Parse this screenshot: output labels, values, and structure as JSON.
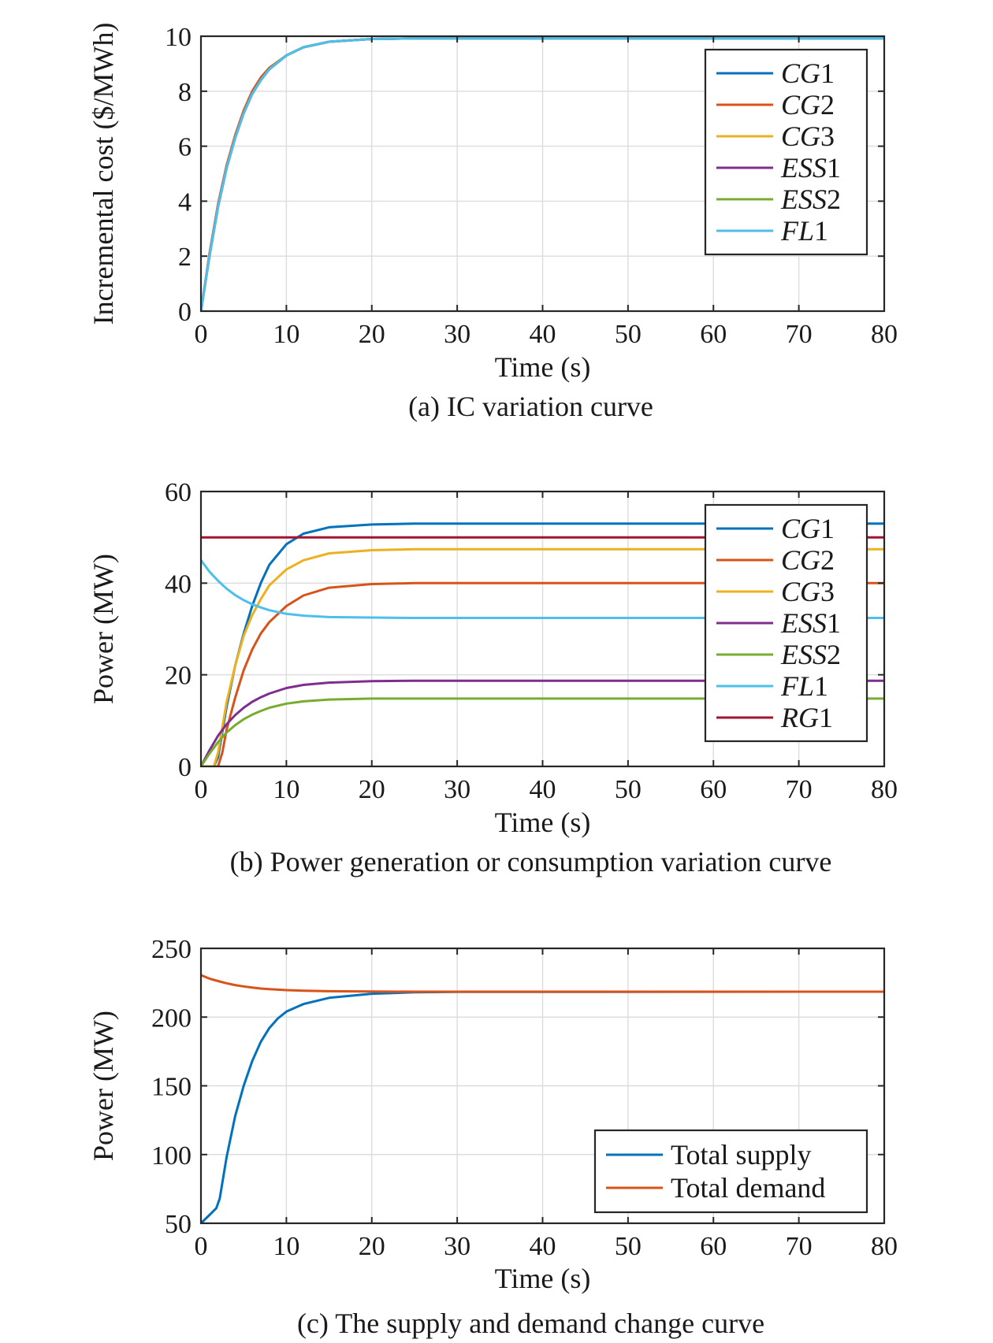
{
  "chart_data": [
    {
      "type": "line",
      "caption": "(a) IC variation curve",
      "xlabel": "Time (s)",
      "ylabel": "Incremental cost ($/MWh)",
      "xlim": [
        0,
        80
      ],
      "ylim": [
        0,
        10
      ],
      "xticks": [
        0,
        10,
        20,
        30,
        40,
        50,
        60,
        70,
        80
      ],
      "yticks": [
        0,
        2,
        4,
        6,
        8,
        10
      ],
      "grid": true,
      "legend_position": "top-right",
      "series": [
        {
          "name": "CG1",
          "color": "#0072BD",
          "x": [
            0,
            1,
            2,
            3,
            4,
            5,
            6,
            7,
            8,
            10,
            12,
            15,
            20,
            25,
            30,
            80
          ],
          "y": [
            0,
            2.0,
            3.8,
            5.2,
            6.3,
            7.2,
            7.9,
            8.4,
            8.8,
            9.3,
            9.6,
            9.8,
            9.9,
            9.92,
            9.92,
            9.92
          ]
        },
        {
          "name": "CG2",
          "color": "#D95319",
          "x": [
            0,
            1,
            2,
            3,
            4,
            5,
            6,
            7,
            8,
            10,
            12,
            15,
            20,
            25,
            30,
            80
          ],
          "y": [
            0,
            2.1,
            3.9,
            5.3,
            6.4,
            7.3,
            8.0,
            8.5,
            8.85,
            9.3,
            9.6,
            9.8,
            9.9,
            9.92,
            9.92,
            9.92
          ]
        },
        {
          "name": "CG3",
          "color": "#EDB120",
          "x": [
            0,
            1,
            2,
            3,
            4,
            5,
            6,
            7,
            8,
            10,
            12,
            15,
            20,
            25,
            30,
            80
          ],
          "y": [
            0,
            2.0,
            3.8,
            5.2,
            6.3,
            7.2,
            7.9,
            8.4,
            8.8,
            9.3,
            9.6,
            9.8,
            9.9,
            9.92,
            9.92,
            9.92
          ]
        },
        {
          "name": "ESS1",
          "color": "#7E2F8E",
          "x": [
            0,
            1,
            2,
            3,
            4,
            5,
            6,
            7,
            8,
            10,
            12,
            15,
            20,
            25,
            30,
            80
          ],
          "y": [
            0,
            2.0,
            3.8,
            5.2,
            6.3,
            7.2,
            7.9,
            8.4,
            8.8,
            9.3,
            9.6,
            9.8,
            9.9,
            9.92,
            9.92,
            9.92
          ]
        },
        {
          "name": "ESS2",
          "color": "#77AC30",
          "x": [
            0,
            1,
            2,
            3,
            4,
            5,
            6,
            7,
            8,
            10,
            12,
            15,
            20,
            25,
            30,
            80
          ],
          "y": [
            0,
            2.0,
            3.8,
            5.2,
            6.3,
            7.2,
            7.9,
            8.4,
            8.8,
            9.3,
            9.6,
            9.8,
            9.9,
            9.92,
            9.92,
            9.92
          ]
        },
        {
          "name": "FL1",
          "color": "#4DBEEE",
          "x": [
            0,
            1,
            2,
            3,
            4,
            5,
            6,
            7,
            8,
            10,
            12,
            15,
            20,
            25,
            30,
            80
          ],
          "y": [
            0,
            2.0,
            3.8,
            5.2,
            6.3,
            7.2,
            7.9,
            8.4,
            8.8,
            9.3,
            9.6,
            9.8,
            9.9,
            9.92,
            9.92,
            9.92
          ]
        }
      ]
    },
    {
      "type": "line",
      "caption": "(b) Power generation or consumption variation curve",
      "xlabel": "Time (s)",
      "ylabel": "Power (MW)",
      "xlim": [
        0,
        80
      ],
      "ylim": [
        0,
        60
      ],
      "xticks": [
        0,
        10,
        20,
        30,
        40,
        50,
        60,
        70,
        80
      ],
      "yticks": [
        0,
        20,
        40,
        60
      ],
      "grid": true,
      "legend_position": "top-right",
      "series": [
        {
          "name": "CG1",
          "color": "#0072BD",
          "x": [
            0,
            1.5,
            2,
            3,
            4,
            5,
            6,
            7,
            8,
            10,
            12,
            15,
            20,
            25,
            30,
            80
          ],
          "y": [
            0,
            0,
            2,
            13,
            22,
            29,
            35,
            40,
            44,
            48.5,
            50.8,
            52.2,
            52.8,
            53,
            53,
            53
          ]
        },
        {
          "name": "CG2",
          "color": "#D95319",
          "x": [
            0,
            2,
            2.5,
            3,
            4,
            5,
            6,
            7,
            8,
            10,
            12,
            15,
            20,
            25,
            30,
            80
          ],
          "y": [
            0,
            0,
            3,
            8,
            15,
            21,
            25.5,
            29,
            31.5,
            35,
            37.3,
            39,
            39.8,
            40,
            40,
            40
          ]
        },
        {
          "name": "CG3",
          "color": "#EDB120",
          "x": [
            0,
            1.5,
            2,
            3,
            4,
            5,
            6,
            7,
            8,
            10,
            12,
            15,
            20,
            25,
            30,
            80
          ],
          "y": [
            0,
            0,
            3,
            14,
            22,
            28.5,
            33,
            36.5,
            39.5,
            43,
            45,
            46.5,
            47.2,
            47.4,
            47.4,
            47.4
          ]
        },
        {
          "name": "ESS1",
          "color": "#7E2F8E",
          "x": [
            0,
            1,
            2,
            3,
            4,
            5,
            6,
            7,
            8,
            10,
            12,
            15,
            20,
            25,
            30,
            80
          ],
          "y": [
            0,
            3.5,
            6.7,
            9.2,
            11.2,
            12.8,
            14.1,
            15.1,
            15.9,
            17.1,
            17.8,
            18.3,
            18.6,
            18.7,
            18.7,
            18.7
          ]
        },
        {
          "name": "ESS2",
          "color": "#77AC30",
          "x": [
            0,
            1,
            2,
            3,
            4,
            5,
            6,
            7,
            8,
            10,
            12,
            15,
            20,
            25,
            30,
            80
          ],
          "y": [
            0,
            2.8,
            5.3,
            7.4,
            9.0,
            10.3,
            11.3,
            12.1,
            12.8,
            13.7,
            14.2,
            14.6,
            14.8,
            14.8,
            14.8,
            14.8
          ]
        },
        {
          "name": "FL1",
          "color": "#4DBEEE",
          "x": [
            0,
            1,
            2,
            3,
            4,
            5,
            6,
            7,
            8,
            10,
            12,
            15,
            20,
            25,
            30,
            80
          ],
          "y": [
            45,
            42.5,
            40.5,
            38.8,
            37.4,
            36.3,
            35.4,
            34.7,
            34.1,
            33.3,
            32.9,
            32.6,
            32.5,
            32.4,
            32.4,
            32.4
          ]
        },
        {
          "name": "RG1",
          "color": "#A2142F",
          "x": [
            0,
            80
          ],
          "y": [
            50,
            50
          ]
        }
      ]
    },
    {
      "type": "line",
      "caption": "(c) The supply and demand change curve",
      "xlabel": "Time (s)",
      "ylabel": "Power (MW)",
      "xlim": [
        0,
        80
      ],
      "ylim": [
        50,
        250
      ],
      "xticks": [
        0,
        10,
        20,
        30,
        40,
        50,
        60,
        70,
        80
      ],
      "yticks": [
        50,
        100,
        150,
        200,
        250
      ],
      "grid": true,
      "legend_position": "bottom-right",
      "series": [
        {
          "name": "Total supply",
          "color": "#0072BD",
          "x": [
            0,
            1,
            1.8,
            2.2,
            3,
            4,
            5,
            6,
            7,
            8,
            9,
            10,
            12,
            15,
            20,
            25,
            30,
            80
          ],
          "y": [
            50,
            56,
            61,
            68,
            98,
            128,
            150,
            168,
            182,
            192,
            199,
            204,
            209.5,
            214,
            217,
            218,
            218.3,
            218.5
          ]
        },
        {
          "name": "Total demand",
          "color": "#D95319",
          "x": [
            0,
            1,
            2,
            3,
            4,
            5,
            6,
            7,
            8,
            10,
            12,
            15,
            20,
            25,
            30,
            80
          ],
          "y": [
            230.5,
            228,
            226.2,
            224.6,
            223.3,
            222.3,
            221.5,
            220.8,
            220.3,
            219.6,
            219.2,
            218.8,
            218.6,
            218.5,
            218.5,
            218.5
          ]
        }
      ]
    }
  ]
}
